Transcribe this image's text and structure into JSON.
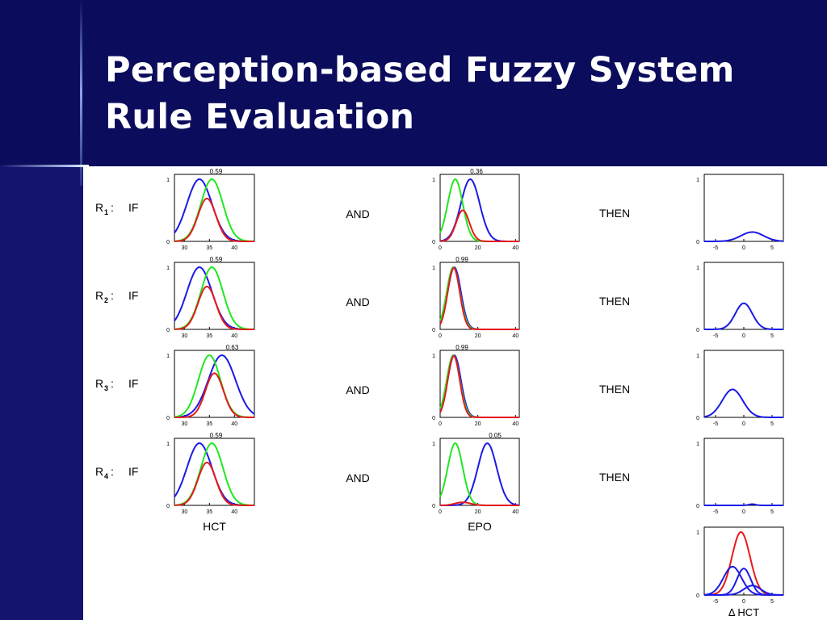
{
  "title": {
    "line1": "Perception-based Fuzzy System",
    "line2": "Rule Evaluation"
  },
  "colors": {
    "background": "#0c0c5c",
    "title_text": "#ffffff",
    "series_blue": "#1a1ae6",
    "series_green": "#22e622",
    "series_red": "#e61a1a"
  },
  "labels": {
    "if": "IF",
    "and": "AND",
    "then": "THEN",
    "hct": "HCT",
    "epo": "EPO",
    "delta_hct": "Δ HCT"
  },
  "hct_axis": {
    "xmin": 28,
    "xmax": 44,
    "ticks": [
      "30",
      "35",
      "40"
    ]
  },
  "epo_axis": {
    "xmin": 0,
    "xmax": 42,
    "ticks": [
      "0",
      "20",
      "40"
    ]
  },
  "dhct_axis": {
    "xmin": -7,
    "xmax": 7,
    "ticks": [
      "-5",
      "0",
      "5"
    ]
  },
  "y_ticks": [
    "0",
    "1"
  ],
  "rules": [
    {
      "rule_letter": "R",
      "rule_sub": "1",
      "hct": {
        "value_label": "0.59",
        "blue": {
          "m": 33,
          "s": 2.5
        },
        "green": {
          "m": 35.5,
          "s": 2.2
        },
        "red": {
          "m": 34.5,
          "s": 1.8,
          "h": 0.69
        }
      },
      "epo": {
        "value_label": "0.36",
        "blue": {
          "m": 16,
          "s": 5
        },
        "green": {
          "m": 8,
          "s": 4
        },
        "red": {
          "m": 12,
          "s": 3.5,
          "h": 0.5
        }
      },
      "out": [
        {
          "color": "blue",
          "m": 1.5,
          "s": 2,
          "h": 0.15
        }
      ]
    },
    {
      "rule_letter": "R",
      "rule_sub": "2",
      "hct": {
        "value_label": "0.59",
        "blue": {
          "m": 33,
          "s": 2.5
        },
        "green": {
          "m": 35.5,
          "s": 2.2
        },
        "red": {
          "m": 34.5,
          "s": 1.8,
          "h": 0.69
        }
      },
      "epo": {
        "value_label": "0.99",
        "blue": {
          "m": 7.5,
          "s": 3.5
        },
        "green": {
          "m": 7,
          "s": 3.5
        },
        "red": {
          "m": 7.2,
          "s": 3.2,
          "h": 0.99
        }
      },
      "out": [
        {
          "color": "blue",
          "m": 0,
          "s": 1.5,
          "h": 0.42
        }
      ]
    },
    {
      "rule_letter": "R",
      "rule_sub": "3",
      "hct": {
        "value_label": "0.63",
        "blue": {
          "m": 37.5,
          "s": 2.7
        },
        "green": {
          "m": 35,
          "s": 2.2
        },
        "red": {
          "m": 36,
          "s": 1.8,
          "h": 0.71
        }
      },
      "epo": {
        "value_label": "0.99",
        "blue": {
          "m": 7.5,
          "s": 3.5
        },
        "green": {
          "m": 7,
          "s": 3.5
        },
        "red": {
          "m": 7.2,
          "s": 3.2,
          "h": 0.99
        }
      },
      "out": [
        {
          "color": "blue",
          "m": -2,
          "s": 1.8,
          "h": 0.45
        }
      ]
    },
    {
      "rule_letter": "R",
      "rule_sub": "4",
      "hct": {
        "value_label": "0.59",
        "blue": {
          "m": 33,
          "s": 2.5
        },
        "green": {
          "m": 35.5,
          "s": 2.2
        },
        "red": {
          "m": 34.5,
          "s": 1.8,
          "h": 0.69
        }
      },
      "epo": {
        "value_label": "0.05",
        "blue": {
          "m": 25,
          "s": 5
        },
        "green": {
          "m": 8,
          "s": 4
        },
        "red": {
          "m": 12,
          "s": 4,
          "h": 0.05
        }
      },
      "out": [
        {
          "color": "blue",
          "m": 1.5,
          "s": 0.6,
          "h": 0.02
        }
      ]
    }
  ],
  "aggregate": [
    {
      "color": "red",
      "m": -0.5,
      "s": 1.6,
      "h": 1.0
    },
    {
      "color": "blue",
      "m": -2,
      "s": 1.6,
      "h": 0.45
    },
    {
      "color": "blue",
      "m": 0,
      "s": 1.2,
      "h": 0.42
    },
    {
      "color": "blue",
      "m": 1.5,
      "s": 1.5,
      "h": 0.15
    }
  ]
}
